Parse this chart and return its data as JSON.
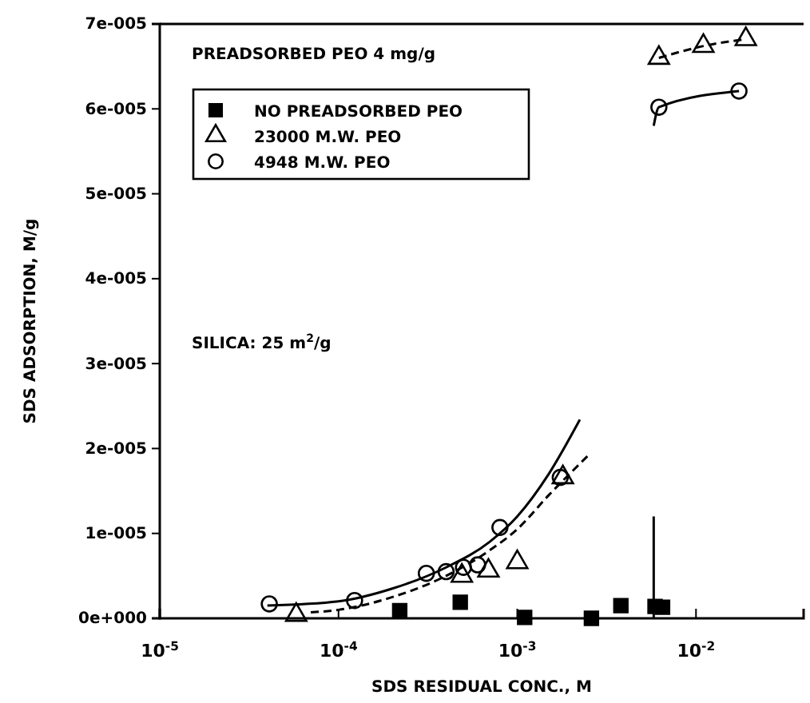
{
  "chart_data": {
    "type": "scatter",
    "xlabel": "SDS RESIDUAL CONC., M",
    "ylabel": "SDS ADSORPTION, M/g",
    "log": "x",
    "xlim": [
      1e-05,
      0.04
    ],
    "ylim": [
      0,
      7e-05
    ],
    "xticks": [
      {
        "value": 1e-05,
        "label": "10$^{-5}$"
      },
      {
        "value": 0.0001,
        "label": "10$^{-4}$"
      },
      {
        "value": 0.001,
        "label": "10$^{-3}$"
      },
      {
        "value": 0.01,
        "label": "10$^{-2}$"
      }
    ],
    "yticks": [
      {
        "value": 0,
        "label": "0e+000"
      },
      {
        "value": 1e-05,
        "label": "1e-005"
      },
      {
        "value": 2e-05,
        "label": "2e-005"
      },
      {
        "value": 3e-05,
        "label": "3e-005"
      },
      {
        "value": 4e-05,
        "label": "4e-005"
      },
      {
        "value": 5e-05,
        "label": "5e-005"
      },
      {
        "value": 6e-05,
        "label": "6e-005"
      },
      {
        "value": 7e-05,
        "label": "7e-005"
      }
    ],
    "legend": "top left",
    "grid": false,
    "annotations": [
      "PREADSORBED PEO 4 mg/g",
      "SILICA: 25 m$^{2}$/g"
    ],
    "series": [
      {
        "type": "line",
        "line_style": "solid",
        "color": "#000000",
        "x": [
          0.0058,
          0.0058
        ],
        "values": [
          0,
          1.2e-05
        ]
      },
      {
        "name": "NO PREADSORBED PEO",
        "marker": "square",
        "color": "#000000",
        "x": [
          0.00022,
          0.00048,
          0.0011,
          0.0026,
          0.0038,
          0.0059,
          0.0065
        ],
        "values": [
          9e-07,
          1.9e-06,
          1e-07,
          0,
          1.5e-06,
          1.4e-06,
          1.3e-06
        ]
      },
      {
        "name": "23000 M.W. PEO",
        "marker": "triangle",
        "color": "#000000",
        "x": [
          5.8e-05,
          0.00049,
          0.00069,
          0.001,
          0.0018,
          0.0062,
          0.011,
          0.019
        ],
        "values": [
          4e-07,
          5e-06,
          5.6e-06,
          6.6e-06,
          1.66e-05,
          6.6e-05,
          6.74e-05,
          6.82e-05
        ]
      },
      {
        "name": "4948 M.W. PEO",
        "marker": "circle",
        "color": "#000000",
        "x": [
          4.1e-05,
          0.000123,
          0.00031,
          0.0004,
          0.0005,
          0.0006,
          0.0008,
          0.00174,
          0.0062,
          0.0174
        ],
        "values": [
          1.7e-06,
          2.1e-06,
          5.3e-06,
          5.5e-06,
          6e-06,
          6.3e-06,
          1.07e-05,
          1.66e-05,
          6.02e-05,
          6.21e-05
        ]
      },
      {
        "type": "line",
        "line_style": "solid",
        "color": "#000000",
        "x": [
          4e-05,
          0.0001,
          0.0002,
          0.0004,
          0.0007,
          0.001,
          0.0015,
          0.00224
        ],
        "values": [
          1.5e-06,
          2e-06,
          3.5e-06,
          6e-06,
          9e-06,
          1.2e-05,
          1.7e-05,
          2.34e-05
        ]
      },
      {
        "type": "line",
        "line_style": "dashed",
        "color": "#000000",
        "x": [
          7e-05,
          0.0001,
          0.0002,
          0.0004,
          0.0007,
          0.001,
          0.0015,
          0.0025
        ],
        "values": [
          7e-07,
          1e-06,
          2.5e-06,
          5e-06,
          8e-06,
          1.05e-05,
          1.45e-05,
          1.92e-05
        ]
      },
      {
        "type": "line",
        "line_style": "solid",
        "color": "#000000",
        "x": [
          0.0058,
          0.0062,
          0.0174
        ],
        "values": [
          5.8e-05,
          6.02e-05,
          6.21e-05
        ]
      },
      {
        "type": "line",
        "line_style": "dashed",
        "color": "#000000",
        "x": [
          0.0062,
          0.011,
          0.019
        ],
        "values": [
          6.6e-05,
          6.74e-05,
          6.82e-05
        ]
      }
    ]
  }
}
